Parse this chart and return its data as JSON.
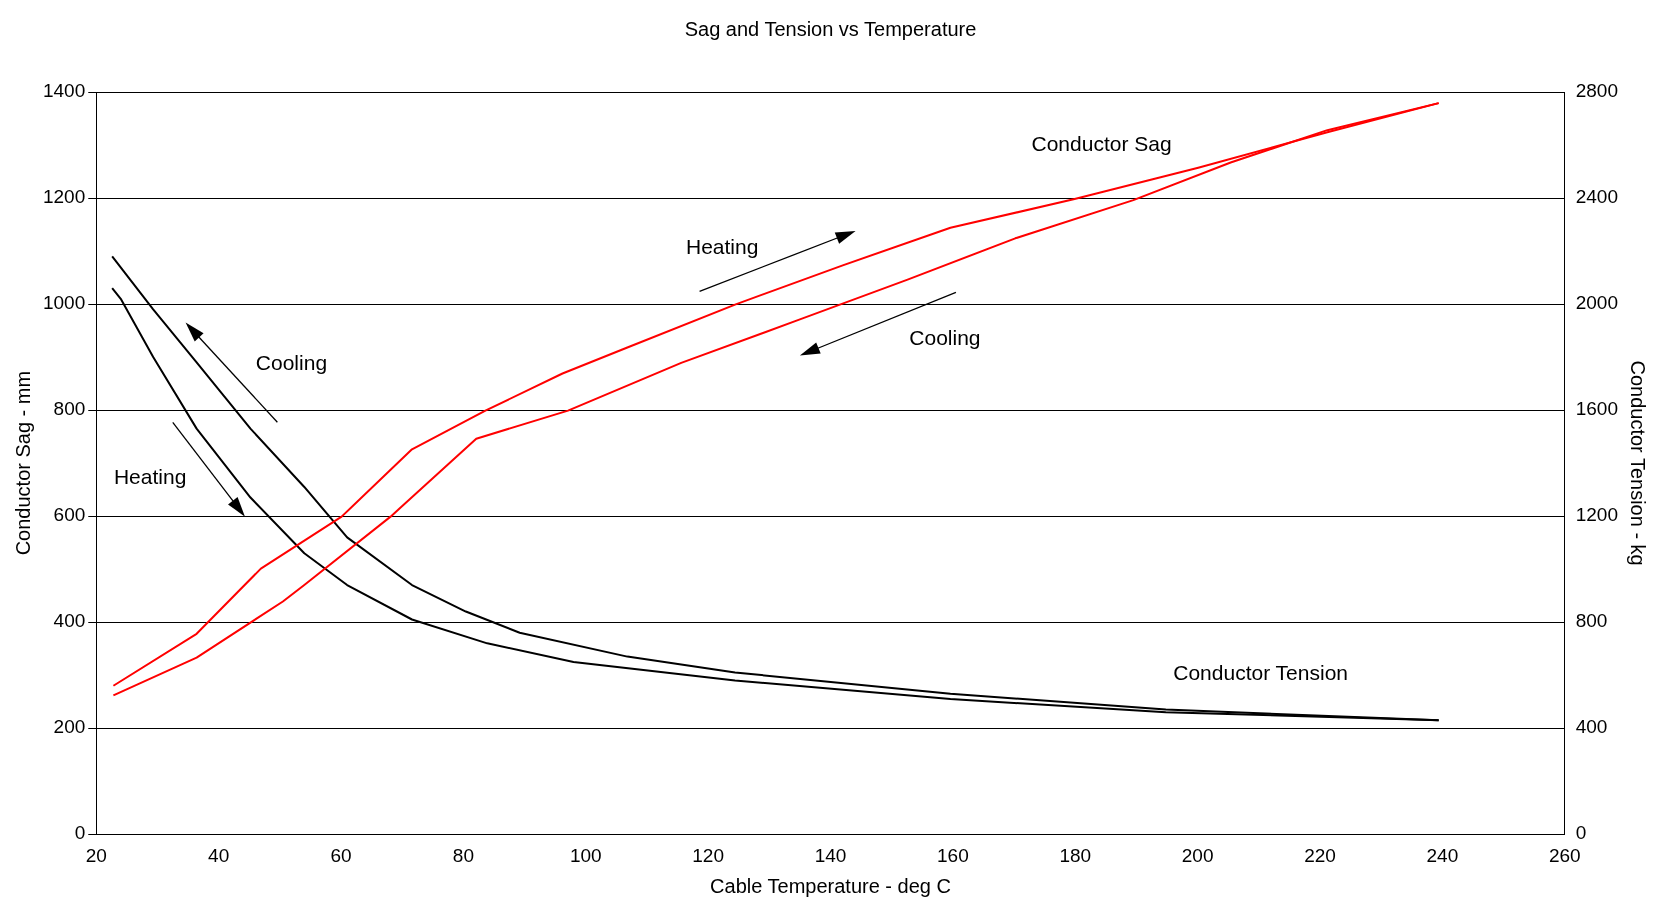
{
  "chart_data": {
    "type": "line",
    "title": "Sag and Tension vs Temperature",
    "xlabel": "Cable Temperature - deg C",
    "ylabel": "Conductor Sag - mm",
    "y2label": "Conductor Tension - kg",
    "xlim": [
      20,
      260
    ],
    "xticks": [
      20,
      40,
      60,
      80,
      100,
      120,
      140,
      160,
      180,
      200,
      220,
      240,
      260
    ],
    "ylim": [
      0,
      1400
    ],
    "yticks": [
      0,
      200,
      400,
      600,
      800,
      1000,
      1200,
      1400
    ],
    "y2lim": [
      0,
      2800
    ],
    "y2ticks": [
      0,
      400,
      800,
      1200,
      1600,
      2000,
      2400,
      2800
    ],
    "grid": "y",
    "legend": false,
    "marker": "none",
    "line_style": "solid",
    "series": [
      {
        "color": "#ff0000",
        "x": [
          22.8,
          36.4,
          46.9,
          60.1,
          71.6,
          83.6,
          96.2,
          106.8,
          124.4,
          142,
          159.6,
          179.9,
          200.1,
          221.2,
          239.4
        ],
        "values": [
          280,
          378,
          501,
          599,
          726,
          799,
          869,
          918,
          999,
          1073,
          1144,
          1198,
          1257,
          1324,
          1379
        ]
      },
      {
        "color": "#ff0000",
        "x": [
          22.8,
          36.4,
          50.5,
          54,
          68.1,
          82.1,
          97.1,
          115.6,
          135,
          152.6,
          170.2,
          189.5,
          205.4,
          221.2,
          239.4
        ],
        "values": [
          262,
          333,
          439,
          470,
          599,
          746,
          799,
          889,
          971,
          1046,
          1124,
          1196,
          1267,
          1328,
          1379
        ]
      },
      {
        "color": "#000000",
        "axis": "y2",
        "x": [
          22.6,
          29.3,
          36.4,
          45.2,
          54,
          61,
          71.6,
          80.4,
          89.2,
          106.8,
          124.4,
          159.6,
          194.8,
          239.4
        ],
        "values": [
          2180,
          1980,
          1780,
          1530,
          1310,
          1120,
          940,
          840,
          760,
          670,
          610,
          530,
          470,
          430
        ]
      },
      {
        "color": "#000000",
        "axis": "y2",
        "x": [
          22.6,
          24,
          29.3,
          36.4,
          45.2,
          54,
          61,
          71.6,
          83.9,
          98,
          124.4,
          159.6,
          194.8,
          239.4
        ],
        "values": [
          2060,
          2020,
          1800,
          1530,
          1270,
          1060,
          940,
          810,
          720,
          650,
          580,
          510,
          460,
          430
        ]
      }
    ],
    "annotations": [
      "Conductor Sag",
      "Heating",
      "Cooling",
      "Cooling",
      "Heating",
      "Conductor Tension"
    ]
  }
}
